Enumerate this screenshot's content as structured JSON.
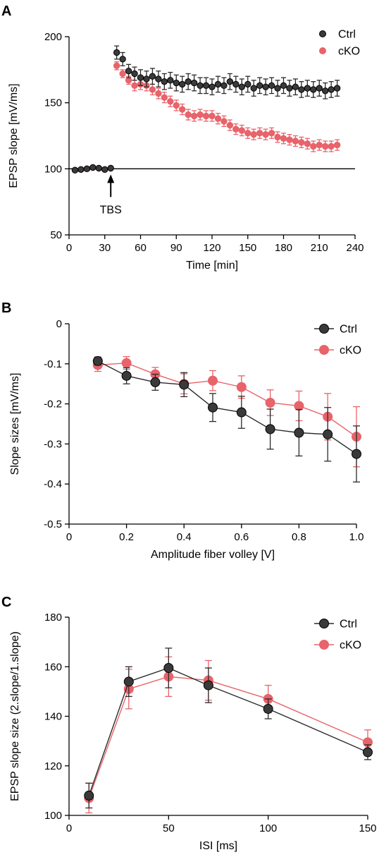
{
  "colors": {
    "ctrl": "#2b2b2b",
    "cko": "#e8636a",
    "axis": "#000000"
  },
  "chart_data": [
    {
      "panel_label": "A",
      "type": "scatter",
      "xlabel": "Time [min]",
      "ylabel": "EPSP slope [mV/ms]",
      "xlim": [
        0,
        240
      ],
      "ylim": [
        50,
        200
      ],
      "xticks": [
        0,
        30,
        60,
        90,
        120,
        150,
        180,
        210,
        240
      ],
      "yticks": [
        50,
        100,
        150,
        200
      ],
      "baseline": 100,
      "annotation": {
        "text": "TBS",
        "x": 35
      },
      "legend": [
        "Ctrl",
        "cKO"
      ],
      "series": [
        {
          "name": "Ctrl",
          "x": [
            5,
            10,
            15,
            20,
            25,
            30,
            35,
            40,
            45,
            50,
            55,
            60,
            65,
            70,
            75,
            80,
            85,
            90,
            95,
            100,
            105,
            110,
            115,
            120,
            125,
            130,
            135,
            140,
            145,
            150,
            155,
            160,
            165,
            170,
            175,
            180,
            185,
            190,
            195,
            200,
            205,
            210,
            215,
            220,
            225
          ],
          "y": [
            99,
            99.5,
            100,
            101,
            100.5,
            99.5,
            100.5,
            188,
            183,
            174,
            172,
            169,
            168,
            170,
            168,
            166,
            167,
            165,
            164,
            166,
            165,
            163,
            163,
            162,
            164,
            163,
            166,
            164,
            162,
            164,
            161,
            163,
            162,
            163,
            161,
            163,
            161,
            162,
            160,
            161,
            160,
            161,
            159,
            160,
            161
          ],
          "err": [
            1,
            1,
            1,
            1,
            1,
            1,
            1,
            5,
            5,
            5,
            5,
            6,
            6,
            6,
            6,
            6,
            6,
            6,
            6,
            6,
            6,
            6,
            6,
            6,
            6,
            6,
            6,
            6,
            6,
            6,
            6,
            6,
            6,
            6,
            6,
            6,
            6,
            6,
            6,
            6,
            6,
            6,
            6,
            6,
            6
          ]
        },
        {
          "name": "cKO",
          "x": [
            5,
            10,
            15,
            20,
            25,
            30,
            35,
            40,
            45,
            50,
            55,
            60,
            65,
            70,
            75,
            80,
            85,
            90,
            95,
            100,
            105,
            110,
            115,
            120,
            125,
            130,
            135,
            140,
            145,
            150,
            155,
            160,
            165,
            170,
            175,
            180,
            185,
            190,
            195,
            200,
            205,
            210,
            215,
            220,
            225
          ],
          "y": [
            99,
            99.5,
            100,
            101,
            100.5,
            99.5,
            100.5,
            178,
            172,
            167,
            163,
            164,
            163,
            160,
            157,
            154,
            151,
            148,
            145,
            141,
            140,
            141,
            140,
            140,
            138,
            136,
            133,
            130,
            129,
            127,
            126,
            127,
            126,
            127,
            124,
            123,
            122,
            121,
            120,
            119,
            117,
            118,
            117,
            117,
            118
          ],
          "err": [
            1,
            1,
            1,
            1,
            1,
            1,
            1,
            3,
            3,
            3,
            4,
            4,
            4,
            4,
            4,
            4,
            4,
            4,
            4,
            4,
            4,
            4,
            4,
            4,
            4,
            4,
            4,
            4,
            4,
            4,
            4,
            4,
            4,
            4,
            4,
            4,
            4,
            4,
            4,
            4,
            4,
            4,
            4,
            4,
            4
          ]
        }
      ]
    },
    {
      "panel_label": "B",
      "type": "line",
      "xlabel": "Amplitude fiber volley [V]",
      "ylabel": "Slope sizes [mV/ms]",
      "xlim": [
        0,
        1.0
      ],
      "ylim": [
        -0.5,
        0
      ],
      "xticks": [
        0,
        0.2,
        0.4,
        0.6,
        0.8,
        1.0
      ],
      "xticklabels": [
        "0",
        "0.2",
        "0.4",
        "0.6",
        "0.8",
        "1.0"
      ],
      "yticks": [
        0,
        -0.1,
        -0.2,
        -0.3,
        -0.4,
        -0.5
      ],
      "yticklabels": [
        "0",
        "-0.1",
        "-0.2",
        "-0.3",
        "-0.4",
        "-0.5"
      ],
      "legend": [
        "Ctrl",
        "cKO"
      ],
      "series": [
        {
          "name": "Ctrl",
          "x": [
            0.1,
            0.2,
            0.3,
            0.4,
            0.5,
            0.6,
            0.7,
            0.8,
            0.9,
            1.0
          ],
          "y": [
            -0.093,
            -0.13,
            -0.146,
            -0.152,
            -0.209,
            -0.221,
            -0.263,
            -0.272,
            -0.276,
            -0.325
          ],
          "err": [
            0.01,
            0.02,
            0.02,
            0.03,
            0.035,
            0.04,
            0.05,
            0.058,
            0.067,
            0.07
          ]
        },
        {
          "name": "cKO",
          "x": [
            0.1,
            0.2,
            0.3,
            0.4,
            0.5,
            0.6,
            0.7,
            0.8,
            0.9,
            1.0
          ],
          "y": [
            -0.103,
            -0.098,
            -0.126,
            -0.15,
            -0.142,
            -0.158,
            -0.197,
            -0.205,
            -0.232,
            -0.282
          ],
          "err": [
            0.016,
            0.016,
            0.017,
            0.025,
            0.025,
            0.028,
            0.032,
            0.037,
            0.058,
            0.075
          ]
        }
      ]
    },
    {
      "panel_label": "C",
      "type": "line",
      "xlabel": "ISI [ms]",
      "ylabel": "EPSP slope size (2.slope/1.slope)",
      "xlim": [
        0,
        150
      ],
      "ylim": [
        100,
        180
      ],
      "xticks": [
        0,
        50,
        100,
        150
      ],
      "yticks": [
        100,
        120,
        140,
        160,
        180
      ],
      "legend": [
        "Ctrl",
        "cKO"
      ],
      "series": [
        {
          "name": "Ctrl",
          "x": [
            10,
            30,
            50,
            70,
            100,
            150
          ],
          "y": [
            108,
            154,
            159.5,
            152.5,
            143,
            125.5
          ],
          "err": [
            5,
            6,
            8,
            7,
            4,
            3
          ]
        },
        {
          "name": "cKO",
          "x": [
            10,
            30,
            50,
            70,
            100,
            150
          ],
          "y": [
            107,
            151,
            156,
            154.5,
            147,
            129.5
          ],
          "err": [
            6,
            8,
            8,
            8,
            5.5,
            5
          ]
        }
      ]
    }
  ]
}
